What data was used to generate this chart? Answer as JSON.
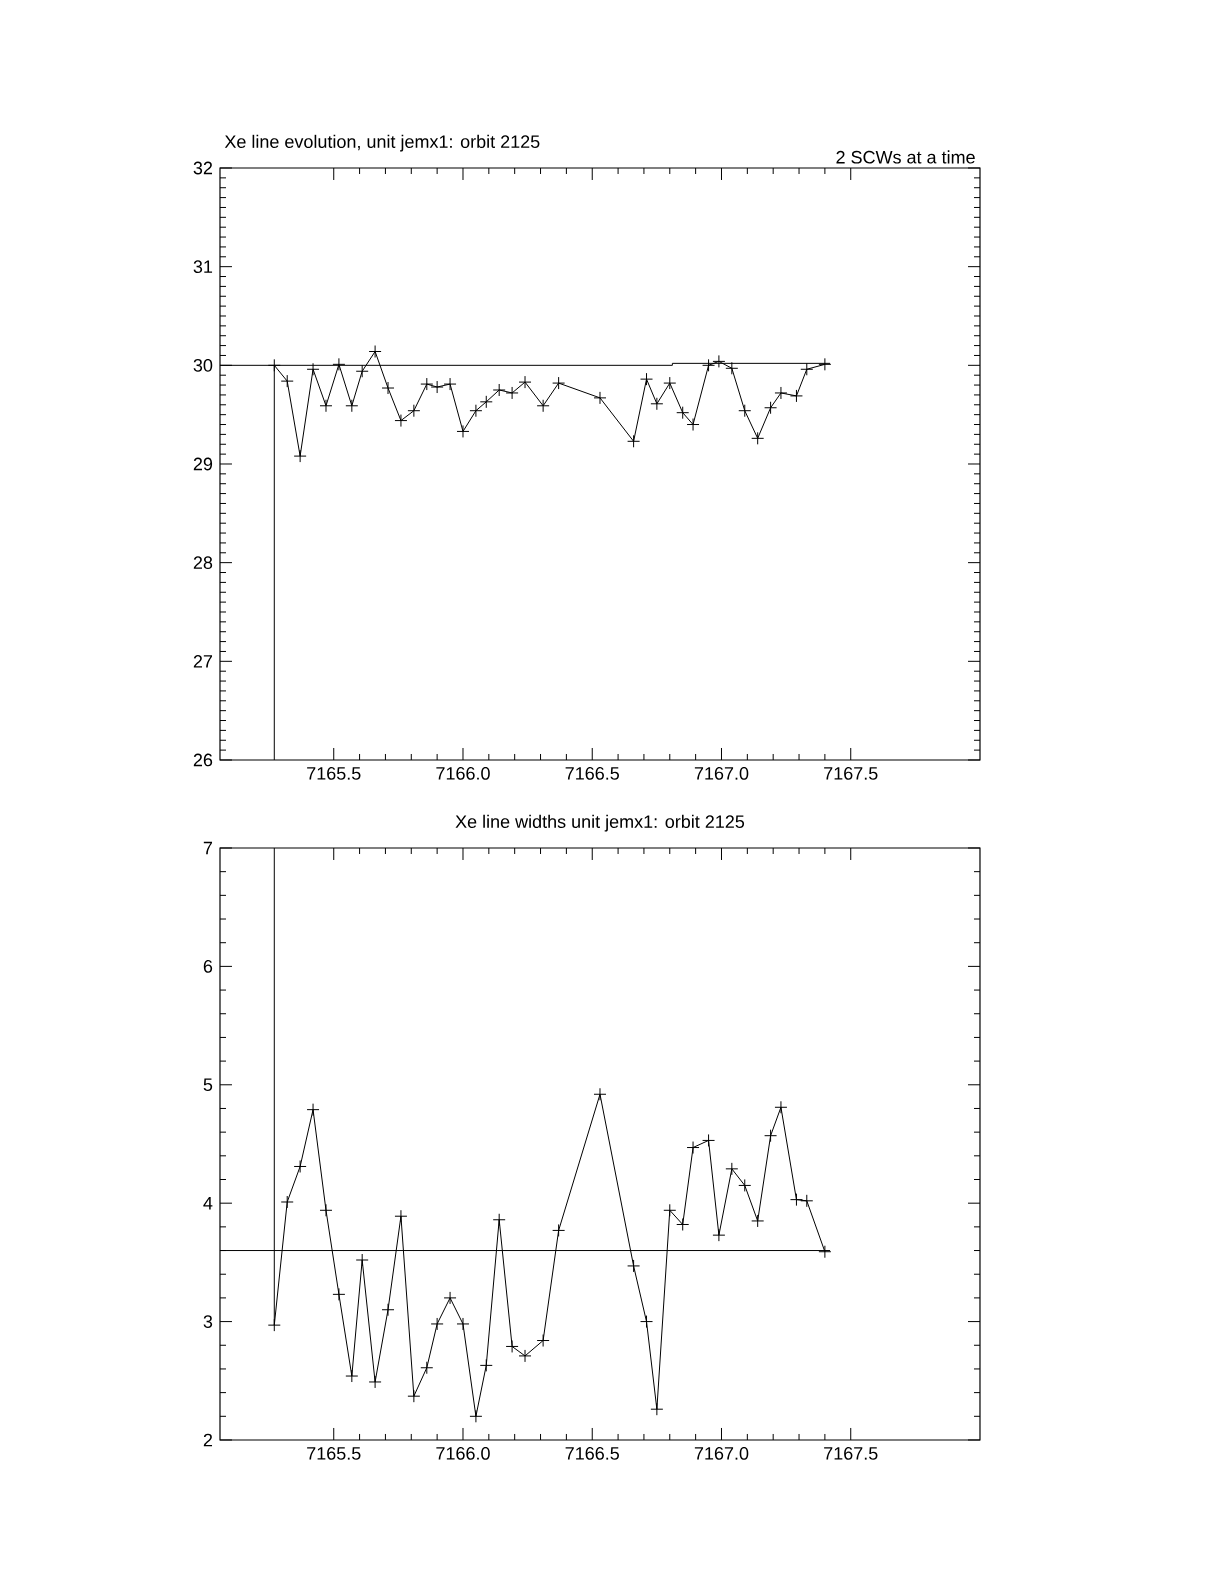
{
  "chart_data": [
    {
      "type": "line",
      "title": "Xe line evolution, unit jemx1: orbit 2125",
      "subtitle": "2 SCWs at a time",
      "x": [
        7165.27,
        7165.32,
        7165.37,
        7165.42,
        7165.47,
        7165.52,
        7165.57,
        7165.61,
        7165.66,
        7165.71,
        7165.76,
        7165.81,
        7165.86,
        7165.9,
        7165.95,
        7166.0,
        7166.05,
        7166.09,
        7166.14,
        7166.19,
        7166.24,
        7166.31,
        7166.37,
        7166.53,
        7166.66,
        7166.71,
        7166.75,
        7166.8,
        7166.85,
        7166.89,
        7166.95,
        7166.99,
        7167.04,
        7167.09,
        7167.14,
        7167.19,
        7167.23,
        7167.29,
        7167.33,
        7167.4
      ],
      "series": [
        {
          "color": "#000000",
          "marker": "cross",
          "values": [
            30.0,
            29.84,
            29.08,
            29.96,
            29.59,
            30.01,
            29.59,
            29.94,
            30.14,
            29.77,
            29.44,
            29.54,
            29.81,
            29.78,
            29.81,
            29.33,
            29.54,
            29.63,
            29.75,
            29.72,
            29.83,
            29.59,
            29.82,
            29.67,
            29.23,
            29.86,
            29.61,
            29.82,
            29.52,
            29.4,
            30.0,
            30.04,
            29.97,
            29.54,
            29.26,
            29.57,
            29.72,
            29.69,
            29.96,
            30.01
          ]
        },
        {
          "color": "#000000",
          "marker": "none",
          "x": [
            7165.06,
            7166.81,
            7166.81,
            7167.42
          ],
          "values": [
            30.0,
            30.0,
            30.02,
            30.02
          ]
        },
        {
          "color": "#000000",
          "marker": "none",
          "x": [
            7165.27,
            7165.27
          ],
          "values": [
            26,
            30.0
          ]
        }
      ],
      "xlim": [
        7165.06,
        7168.0
      ],
      "ylim": [
        26,
        32
      ],
      "xticks": [
        {
          "value": 7165.5,
          "label": "7165.5"
        },
        {
          "value": 7166.0,
          "label": "7166.0"
        },
        {
          "value": 7166.5,
          "label": "7166.5"
        },
        {
          "value": 7167.0,
          "label": "7167.0"
        },
        {
          "value": 7167.5,
          "label": "7167.5"
        }
      ],
      "yticks": [
        26,
        27,
        28,
        29,
        30,
        31,
        32
      ],
      "grid": false
    },
    {
      "type": "line",
      "title": "Xe line widths unit jemx1: orbit 2125",
      "x": [
        7165.27,
        7165.32,
        7165.37,
        7165.42,
        7165.47,
        7165.52,
        7165.57,
        7165.61,
        7165.66,
        7165.71,
        7165.76,
        7165.81,
        7165.86,
        7165.9,
        7165.95,
        7166.0,
        7166.05,
        7166.09,
        7166.14,
        7166.19,
        7166.24,
        7166.31,
        7166.37,
        7166.53,
        7166.66,
        7166.71,
        7166.75,
        7166.8,
        7166.85,
        7166.89,
        7166.95,
        7166.99,
        7167.04,
        7167.09,
        7167.14,
        7167.19,
        7167.23,
        7167.29,
        7167.33,
        7167.4
      ],
      "series": [
        {
          "color": "#000000",
          "marker": "cross",
          "values": [
            2.97,
            4.01,
            4.31,
            4.79,
            3.94,
            3.23,
            2.54,
            3.52,
            2.49,
            3.1,
            3.89,
            2.37,
            2.61,
            2.98,
            3.2,
            2.98,
            2.2,
            2.63,
            3.86,
            2.79,
            2.71,
            2.84,
            3.77,
            4.92,
            3.47,
            3.0,
            2.26,
            3.94,
            3.82,
            4.47,
            4.53,
            3.73,
            4.29,
            4.15,
            3.85,
            4.57,
            4.81,
            4.03,
            4.02,
            3.59
          ]
        },
        {
          "color": "#000000",
          "marker": "none",
          "x": [
            7165.06,
            7167.42
          ],
          "values": [
            3.6,
            3.6
          ]
        },
        {
          "color": "#000000",
          "marker": "none",
          "x": [
            7165.27,
            7165.27
          ],
          "values": [
            2.97,
            7
          ]
        }
      ],
      "xlim": [
        7165.06,
        7168.0
      ],
      "ylim": [
        2,
        7
      ],
      "xticks": [
        {
          "value": 7165.5,
          "label": "7165.5"
        },
        {
          "value": 7166.0,
          "label": "7166.0"
        },
        {
          "value": 7166.5,
          "label": "7166.5"
        },
        {
          "value": 7167.0,
          "label": "7167.0"
        },
        {
          "value": 7167.5,
          "label": "7167.5"
        }
      ],
      "yticks": [
        2,
        3,
        4,
        5,
        6,
        7
      ],
      "grid": false
    }
  ]
}
